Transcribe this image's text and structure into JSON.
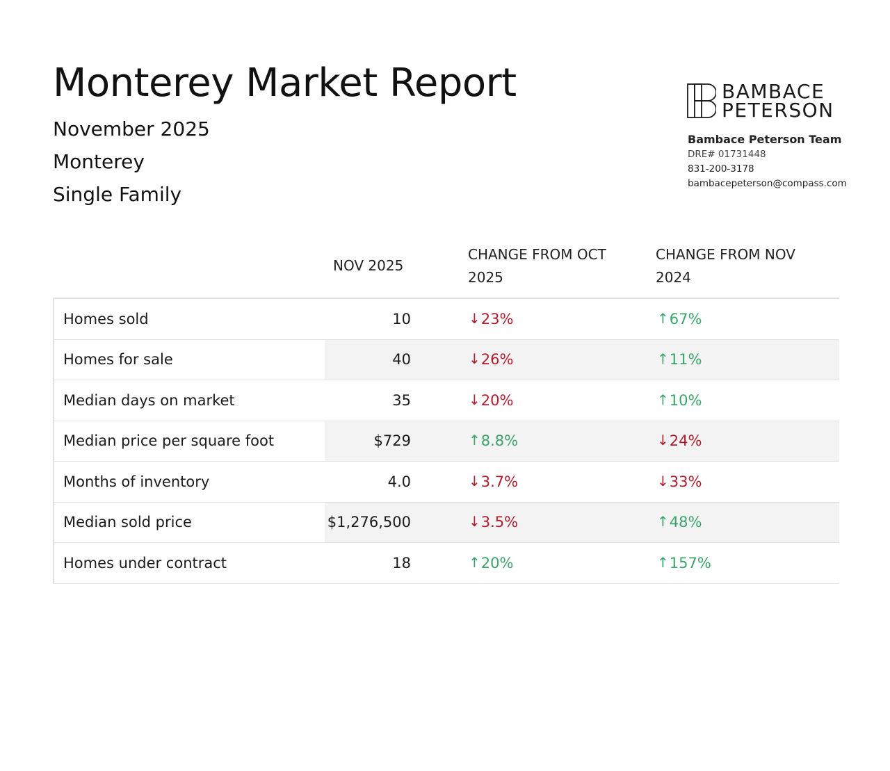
{
  "report": {
    "title": "Monterey Market Report",
    "period": "November 2025",
    "city": "Monterey",
    "property_type": "Single Family"
  },
  "brand": {
    "logo_line1": "BAMBACE",
    "logo_line2": "PETERSON",
    "team_name": "Bambace Peterson Team",
    "dre": "DRE# 01731448",
    "phone": "831-200-3178",
    "email_user": "bambacepeterson",
    "email_domain": "@compass.com"
  },
  "table": {
    "headers": {
      "current": "NOV 2025",
      "change_month": "CHANGE FROM OCT 2025",
      "change_year": "CHANGE FROM NOV 2024"
    },
    "rows": [
      {
        "label": "Homes sold",
        "value": "10",
        "change_month": "23%",
        "change_month_dir": "down",
        "change_year": "67%",
        "change_year_dir": "up"
      },
      {
        "label": "Homes for sale",
        "value": "40",
        "change_month": "26%",
        "change_month_dir": "down",
        "change_year": "11%",
        "change_year_dir": "up"
      },
      {
        "label": "Median days on market",
        "value": "35",
        "change_month": "20%",
        "change_month_dir": "down",
        "change_year": "10%",
        "change_year_dir": "up"
      },
      {
        "label": "Median price per square foot",
        "value": "$729",
        "change_month": "8.8%",
        "change_month_dir": "up",
        "change_year": "24%",
        "change_year_dir": "down"
      },
      {
        "label": "Months of inventory",
        "value": "4.0",
        "change_month": "3.7%",
        "change_month_dir": "down",
        "change_year": "33%",
        "change_year_dir": "down"
      },
      {
        "label": "Median sold price",
        "value": "$1,276,500",
        "change_month": "3.5%",
        "change_month_dir": "down",
        "change_year": "48%",
        "change_year_dir": "up"
      },
      {
        "label": "Homes under contract",
        "value": "18",
        "change_month": "20%",
        "change_month_dir": "up",
        "change_year": "157%",
        "change_year_dir": "up"
      }
    ]
  },
  "icons": {
    "up_arrow": "arrow-up-icon",
    "down_arrow": "arrow-down-icon"
  },
  "colors": {
    "increase": "#3aa46a",
    "decrease": "#b01c2e",
    "row_shade": "#f3f3f3",
    "border": "#e0e0e0"
  }
}
